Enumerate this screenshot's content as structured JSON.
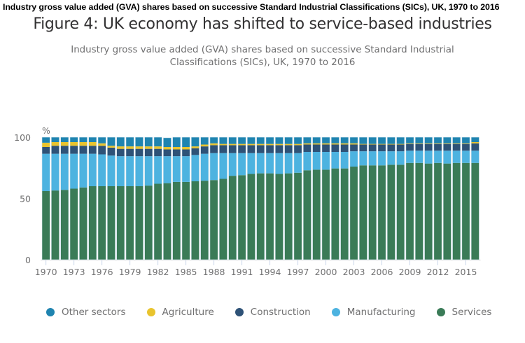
{
  "header": {
    "caption": "Industry gross value added (GVA) shares based on successive Standard Industrial Classifications (SICs), UK, 1970 to 2016",
    "title": "Figure 4: UK economy has shifted to service-based industries",
    "subtitle": "Industry gross value added (GVA) shares based on successive Standard Industrial Classifications (SICs), UK, 1970 to 2016"
  },
  "chart_data": {
    "type": "bar",
    "stacked": true,
    "title": "Figure 4: UK economy has shifted to service-based industries",
    "subtitle": "Industry gross value added (GVA) shares based on successive Standard Industrial Classifications (SICs), UK, 1970 to 2016",
    "xlabel": "",
    "ylabel": "%",
    "ylim": [
      0,
      100
    ],
    "yticks": [
      0,
      50,
      100
    ],
    "grid": false,
    "legend_position": "bottom",
    "categories": [
      "1970",
      "1971",
      "1972",
      "1973",
      "1974",
      "1975",
      "1976",
      "1977",
      "1978",
      "1979",
      "1980",
      "1981",
      "1982",
      "1983",
      "1984",
      "1985",
      "1986",
      "1987",
      "1988",
      "1989",
      "1990",
      "1991",
      "1992",
      "1993",
      "1994",
      "1995",
      "1996",
      "1997",
      "1998",
      "1999",
      "2000",
      "2001",
      "2002",
      "2003",
      "2004",
      "2005",
      "2006",
      "2007",
      "2008",
      "2009",
      "2010",
      "2011",
      "2012",
      "2013",
      "2014",
      "2015",
      "2016"
    ],
    "xtick_labels": [
      "1970",
      "1973",
      "1976",
      "1979",
      "1982",
      "1985",
      "1988",
      "1991",
      "1994",
      "1997",
      "2000",
      "2003",
      "2006",
      "2009",
      "2012",
      "2015"
    ],
    "series": [
      {
        "name": "Services",
        "color": "#3a7b57",
        "values": [
          56,
          56.5,
          57,
          58,
          59,
          60,
          60,
          60,
          60,
          60,
          60,
          60.5,
          62,
          62.5,
          63.5,
          63.5,
          64,
          64.5,
          65,
          66,
          68.5,
          69,
          70,
          70.5,
          70.5,
          70,
          70.5,
          71,
          73,
          73.5,
          73.5,
          74.5,
          74.5,
          76,
          77,
          77,
          77,
          77.5,
          77.5,
          79,
          79,
          78.5,
          79,
          78.5,
          79,
          79,
          79
        ]
      },
      {
        "name": "Manufacturing",
        "color": "#4db3e0",
        "values": [
          30.5,
          30,
          29.5,
          28.5,
          27.5,
          26.5,
          26,
          25,
          24.5,
          24.5,
          24.5,
          24,
          22.5,
          22,
          21,
          21,
          21.5,
          22,
          22,
          21,
          18.5,
          18,
          17,
          16.5,
          16.5,
          17,
          16.5,
          16,
          15,
          14.5,
          14.5,
          13.5,
          13.5,
          12.5,
          11.5,
          11.5,
          11.5,
          11,
          11,
          10,
          10,
          10.5,
          10,
          10.5,
          10,
          10,
          10
        ]
      },
      {
        "name": "Construction",
        "color": "#2e5277",
        "values": [
          5.5,
          6.5,
          6.5,
          6.5,
          6.5,
          6.5,
          7,
          6.5,
          6,
          6,
          6,
          6,
          6,
          5.5,
          5.5,
          5.5,
          5.5,
          6,
          6.5,
          6.5,
          6.5,
          6.5,
          6.5,
          6.5,
          6.5,
          6.5,
          6.5,
          6.5,
          6,
          6,
          6,
          6,
          6,
          5.5,
          5.5,
          5.5,
          5.5,
          5.5,
          5.5,
          5.5,
          5.5,
          5.5,
          5.5,
          5.5,
          5.5,
          5.5,
          6
        ]
      },
      {
        "name": "Agriculture",
        "color": "#e9c42e",
        "values": [
          3.5,
          3,
          3,
          3,
          3,
          3,
          2,
          1.5,
          2,
          2,
          2,
          2,
          2,
          2,
          2,
          2,
          1.5,
          1.5,
          1.5,
          1,
          1,
          1,
          1,
          1,
          1,
          1,
          1,
          1,
          1,
          1,
          1,
          1,
          1,
          1,
          0.5,
          0.5,
          0.5,
          0.5,
          0.5,
          0.5,
          0.5,
          0.5,
          0.5,
          0.5,
          0.5,
          0.5,
          1
        ]
      },
      {
        "name": "Other sectors",
        "color": "#1f84b0",
        "values": [
          4.5,
          4,
          4,
          4,
          4,
          4,
          5,
          7,
          7.5,
          7.5,
          7.5,
          7.5,
          7.5,
          7.5,
          8,
          8,
          7.5,
          6,
          5,
          5.5,
          5.5,
          5.5,
          5.5,
          5.5,
          5.5,
          5.5,
          5.5,
          5.5,
          5,
          5,
          5,
          5,
          5,
          5,
          5.5,
          5.5,
          5.5,
          5.5,
          5.5,
          5,
          5,
          5,
          5,
          5,
          5,
          5,
          4
        ]
      }
    ]
  },
  "legend": {
    "items": [
      {
        "label": "Other sectors",
        "color": "#1f84b0"
      },
      {
        "label": "Agriculture",
        "color": "#e9c42e"
      },
      {
        "label": "Construction",
        "color": "#2e5277"
      },
      {
        "label": "Manufacturing",
        "color": "#4db3e0"
      },
      {
        "label": "Services",
        "color": "#3a7b57"
      }
    ]
  }
}
